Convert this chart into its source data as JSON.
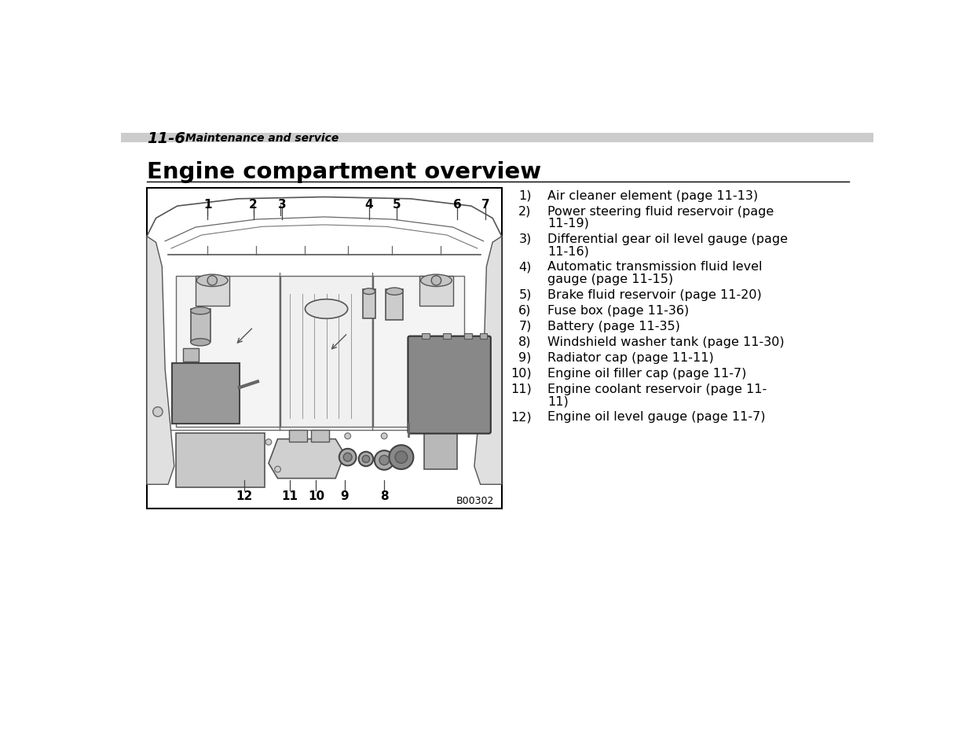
{
  "bg_color": "#ffffff",
  "page_header_bold": "11-6",
  "page_header_italic": "Maintenance and service",
  "section_title": "Engine compartment overview",
  "items": [
    [
      "1)",
      "Air cleaner element (page 11-13)"
    ],
    [
      "2)",
      "Power steering fluid reservoir (page",
      "11-19)"
    ],
    [
      "3)",
      "Differential gear oil level gauge (page",
      "11-16)"
    ],
    [
      "4)",
      "Automatic transmission fluid level",
      "gauge (page 11-15)"
    ],
    [
      "5)",
      "Brake fluid reservoir (page 11-20)"
    ],
    [
      "6)",
      "Fuse box (page 11-36)"
    ],
    [
      "7)",
      "Battery (page 11-35)"
    ],
    [
      "8)",
      "Windshield washer tank (page 11-30)"
    ],
    [
      "9)",
      "Radiator cap (page 11-11)"
    ],
    [
      "10)",
      "Engine oil filler cap (page 11-7)"
    ],
    [
      "11)",
      "Engine coolant reservoir (page 11-",
      "11)"
    ],
    [
      "12)",
      "Engine oil level gauge (page 11-7)"
    ]
  ],
  "figure_code": "B00302",
  "top_labels": [
    "1",
    "2",
    "3",
    "4",
    "5",
    "6",
    "7"
  ],
  "bot_labels": [
    "12",
    "11",
    "10",
    "9",
    "8"
  ],
  "header_gray": "#cccccc",
  "line_color": "#000000",
  "diagram_gray1": "#aaaaaa",
  "diagram_gray2": "#888888",
  "diagram_gray3": "#666666",
  "diagram_light": "#e8e8e8",
  "diagram_mid": "#cccccc"
}
